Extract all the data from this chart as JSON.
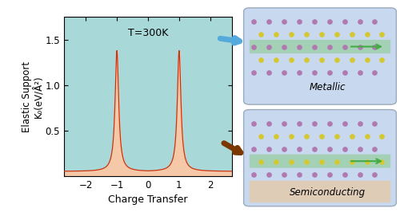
{
  "title": "T=300K",
  "xlabel": "Charge Transfer",
  "ylabel_line1": "Elastic Support",
  "ylabel_line2": "K₀(eV/Å²)",
  "xlim": [
    -2.7,
    2.7
  ],
  "ylim": [
    0,
    1.75
  ],
  "yticks": [
    0.5,
    1.0,
    1.5
  ],
  "xticks": [
    -2,
    -1,
    0,
    1,
    2
  ],
  "bg_color": "#a8d8d8",
  "fill_color": "#f5c8a8",
  "line_color": "#cc3311",
  "peak_height": 1.38,
  "base_level": 0.05,
  "gamma": 0.07,
  "arrow1_color": "#55aadd",
  "arrow2_color": "#7a3800",
  "label_metallic": "Metallic",
  "label_semiconducting": "Semiconducting",
  "box_bg": "#c8d8ee",
  "box_edge": "#aabbcc",
  "purple": "#b07ab0",
  "yellow": "#d4c832",
  "green_band": "#88cc88",
  "peach_band": "#e8c8a0"
}
